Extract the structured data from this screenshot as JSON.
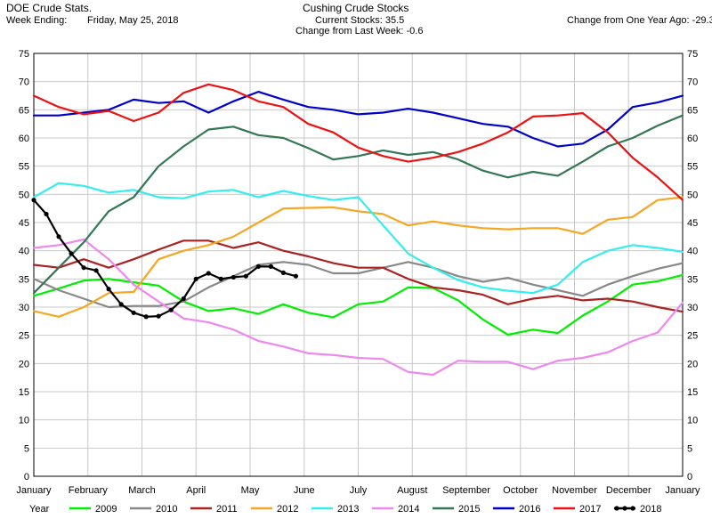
{
  "header": {
    "left_title": "DOE Crude Stats.",
    "week_label": "Week Ending:",
    "week_value": "Friday, May 25, 2018",
    "center_title": "Cushing Crude Stocks",
    "current_stocks": "Current Stocks:  35.5",
    "change_week": "Change from Last Week:  -0.6",
    "change_year": "Change from One Year Ago: -29.3"
  },
  "legend": {
    "title": "Year"
  },
  "chart_data": {
    "type": "line",
    "title": "Cushing Crude Stocks",
    "xlabel": "",
    "ylabel": "",
    "ylim": [
      0,
      75
    ],
    "yticks": [
      0,
      5,
      10,
      15,
      20,
      25,
      30,
      35,
      40,
      45,
      50,
      55,
      60,
      65,
      70,
      75
    ],
    "xlim": [
      1,
      53
    ],
    "month_labels": [
      "January",
      "February",
      "March",
      "April",
      "May",
      "June",
      "July",
      "August",
      "September",
      "October",
      "November",
      "December",
      "January"
    ],
    "x_unit": "week of year",
    "grid": true,
    "legend_position": "bottom",
    "series": [
      {
        "name": "2009",
        "color": "#00ee00",
        "markers": false,
        "x": [
          1,
          3,
          5,
          7,
          9,
          11,
          13,
          15,
          17,
          19,
          21,
          23,
          25,
          27,
          29,
          31,
          33,
          35,
          37,
          39,
          41,
          43,
          45,
          47,
          49,
          51,
          53
        ],
        "y": [
          32,
          33.3,
          34.7,
          35,
          34.4,
          33.8,
          31,
          29.3,
          29.8,
          28.8,
          30.5,
          29,
          28.2,
          30.5,
          31,
          33.5,
          33.4,
          31.2,
          27.8,
          25.1,
          26,
          25.4,
          28.5,
          31,
          34,
          34.6,
          35.7
        ]
      },
      {
        "name": "2010",
        "color": "#888888",
        "markers": false,
        "x": [
          1,
          3,
          5,
          7,
          9,
          11,
          13,
          15,
          17,
          19,
          21,
          23,
          25,
          27,
          29,
          31,
          33,
          35,
          37,
          39,
          41,
          43,
          45,
          47,
          49,
          51,
          53
        ],
        "y": [
          35,
          33,
          31.5,
          30,
          30.2,
          30.2,
          31,
          33.5,
          35.5,
          37.5,
          38,
          37.5,
          36,
          36,
          37,
          38,
          37,
          35.5,
          34.5,
          35.2,
          34,
          33,
          32,
          34,
          35.5,
          36.8,
          37.8
        ]
      },
      {
        "name": "2011",
        "color": "#aa2222",
        "markers": false,
        "x": [
          1,
          3,
          5,
          7,
          9,
          11,
          13,
          15,
          17,
          19,
          21,
          23,
          25,
          27,
          29,
          31,
          33,
          35,
          37,
          39,
          41,
          43,
          45,
          47,
          49,
          51,
          53
        ],
        "y": [
          37.5,
          37,
          38.5,
          37,
          38.5,
          40.2,
          41.8,
          41.8,
          40.5,
          41.5,
          40,
          39,
          37.8,
          37,
          37,
          35,
          33.5,
          33,
          32.2,
          30.5,
          31.5,
          32,
          31.2,
          31.5,
          31,
          30,
          29.2
        ]
      },
      {
        "name": "2012",
        "color": "#f5a623",
        "markers": false,
        "x": [
          1,
          3,
          5,
          7,
          9,
          11,
          13,
          15,
          17,
          19,
          21,
          23,
          25,
          27,
          29,
          31,
          33,
          35,
          37,
          39,
          41,
          43,
          45,
          47,
          49,
          51,
          53
        ],
        "y": [
          29.3,
          28.3,
          30,
          32.5,
          32.7,
          38.5,
          40,
          41,
          42.5,
          45,
          47.5,
          47.6,
          47.7,
          47,
          46.5,
          44.5,
          45.2,
          44.5,
          44,
          43.8,
          44,
          44,
          43,
          45.5,
          46,
          49,
          49.5
        ]
      },
      {
        "name": "2013",
        "color": "#33eeee",
        "markers": false,
        "x": [
          1,
          3,
          5,
          7,
          9,
          11,
          13,
          15,
          17,
          19,
          21,
          23,
          25,
          27,
          29,
          31,
          33,
          35,
          37,
          39,
          41,
          43,
          45,
          47,
          49,
          51,
          53
        ],
        "y": [
          49.5,
          52,
          51.5,
          50.3,
          50.8,
          49.5,
          49.3,
          50.5,
          50.8,
          49.5,
          50.6,
          49.7,
          49,
          49.5,
          44.5,
          39.5,
          37,
          34.8,
          33.5,
          32.9,
          32.5,
          34,
          38,
          40,
          41,
          40.5,
          39.8
        ]
      },
      {
        "name": "2014",
        "color": "#ee88ee",
        "markers": false,
        "x": [
          1,
          3,
          5,
          7,
          9,
          11,
          13,
          15,
          17,
          19,
          21,
          23,
          25,
          27,
          29,
          31,
          33,
          35,
          37,
          39,
          41,
          43,
          45,
          47,
          49,
          51,
          53
        ],
        "y": [
          40.5,
          41,
          42,
          38.5,
          34,
          31,
          28,
          27.3,
          26,
          24,
          23,
          21.8,
          21.5,
          21,
          20.8,
          18.5,
          18,
          20.5,
          20.3,
          20.3,
          19,
          20.5,
          21,
          22,
          24,
          25.5,
          30.8
        ]
      },
      {
        "name": "2015",
        "color": "#337755",
        "markers": false,
        "x": [
          1,
          3,
          5,
          7,
          9,
          11,
          13,
          15,
          17,
          19,
          21,
          23,
          25,
          27,
          29,
          31,
          33,
          35,
          37,
          39,
          41,
          43,
          45,
          47,
          49,
          51,
          53
        ],
        "y": [
          32.5,
          37,
          41.5,
          47,
          49.5,
          55,
          58.5,
          61.5,
          62,
          60.5,
          60,
          58.2,
          56.2,
          56.8,
          57.8,
          57,
          57.5,
          56.2,
          54.2,
          53,
          54,
          53.3,
          55.8,
          58.5,
          60,
          62.2,
          64
        ]
      },
      {
        "name": "2016",
        "color": "#0000cc",
        "markers": false,
        "x": [
          1,
          3,
          5,
          7,
          9,
          11,
          13,
          15,
          17,
          19,
          21,
          23,
          25,
          27,
          29,
          31,
          33,
          35,
          37,
          39,
          41,
          43,
          45,
          47,
          49,
          51,
          53
        ],
        "y": [
          64,
          64,
          64.5,
          65,
          66.8,
          66.2,
          66.5,
          64.5,
          66.5,
          68.2,
          66.8,
          65.5,
          65,
          64.2,
          64.5,
          65.2,
          64.5,
          63.5,
          62.5,
          62,
          60,
          58.5,
          59,
          61.5,
          65.5,
          66.3,
          67.5
        ]
      },
      {
        "name": "2017",
        "color": "#ee1111",
        "markers": false,
        "x": [
          1,
          3,
          5,
          7,
          9,
          11,
          13,
          15,
          17,
          19,
          21,
          23,
          25,
          27,
          29,
          31,
          33,
          35,
          37,
          39,
          41,
          43,
          45,
          47,
          49,
          51,
          53
        ],
        "y": [
          67.5,
          65.5,
          64.2,
          64.8,
          63,
          64.5,
          68,
          69.5,
          68.5,
          66.5,
          65.5,
          62.5,
          61,
          58.3,
          56.8,
          55.8,
          56.5,
          57.5,
          59,
          61,
          63.8,
          64,
          64.4,
          61,
          56.5,
          53,
          49
        ]
      },
      {
        "name": "2018",
        "color": "#000000",
        "markers": true,
        "x": [
          1,
          2,
          3,
          4,
          5,
          6,
          7,
          8,
          9,
          10,
          11,
          12,
          13,
          14,
          15,
          16,
          17,
          18,
          19,
          20,
          21,
          22
        ],
        "y": [
          49,
          46.5,
          42.5,
          39.5,
          37,
          36.5,
          33.2,
          30.5,
          29,
          28.3,
          28.4,
          29.5,
          31.5,
          35,
          36,
          35,
          35.3,
          35.5,
          37.2,
          37.2,
          36.1,
          35.5
        ]
      }
    ]
  }
}
